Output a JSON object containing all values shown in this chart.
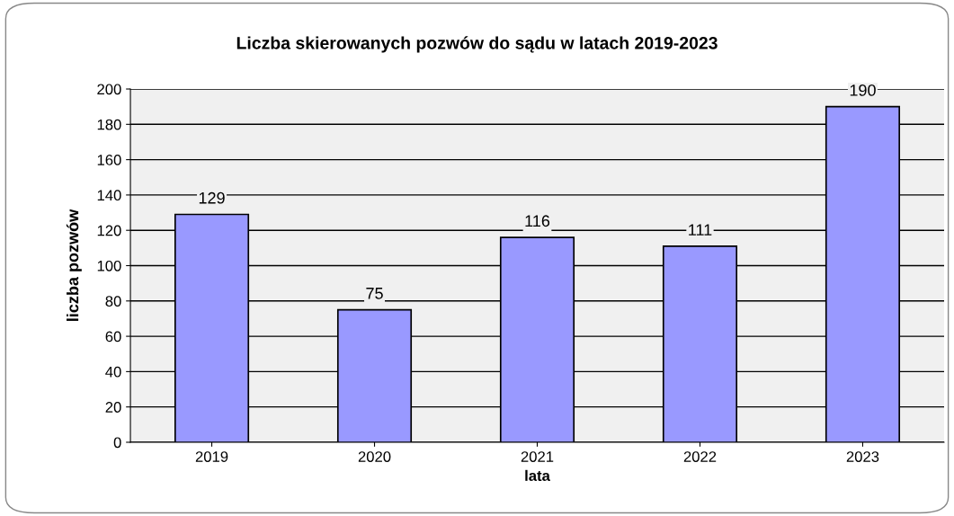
{
  "chart_data": {
    "type": "bar",
    "title": "Liczba skierowanych pozwów do sądu w latach 2019-2023",
    "xlabel": "lata",
    "ylabel": "liczba pozwów",
    "categories": [
      "2019",
      "2020",
      "2021",
      "2022",
      "2023"
    ],
    "values": [
      129,
      75,
      116,
      111,
      190
    ],
    "color": "#9999ff",
    "ylim": [
      0,
      200
    ],
    "yticks": [
      0,
      20,
      40,
      60,
      80,
      100,
      120,
      140,
      160,
      180,
      200
    ],
    "grid": "y",
    "data_labels": true
  }
}
